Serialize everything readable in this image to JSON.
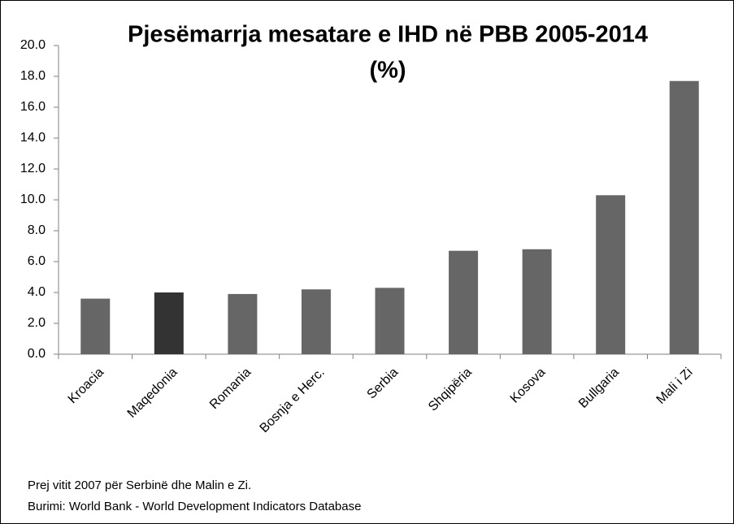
{
  "chart_data": {
    "type": "bar",
    "title": "Pjesëmarrja mesatare e IHD në PBB 2005-2014",
    "subtitle": "(%)",
    "categories": [
      "Kroacia",
      "Maqedonia",
      "Romania",
      "Bosnja e Herc.",
      "Serbia",
      "Shqipëria",
      "Kosova",
      "Bullgaria",
      "Mali i Zi"
    ],
    "values": [
      3.6,
      4.0,
      3.9,
      4.2,
      4.3,
      6.7,
      6.8,
      10.3,
      17.7
    ],
    "colors": [
      "#666666",
      "#333333",
      "#666666",
      "#666666",
      "#666666",
      "#666666",
      "#666666",
      "#666666",
      "#666666"
    ],
    "ylim": [
      0,
      20
    ],
    "yticks": [
      {
        "value": 0,
        "label": "0.0"
      },
      {
        "value": 2,
        "label": "2.0"
      },
      {
        "value": 4,
        "label": "4.0"
      },
      {
        "value": 6,
        "label": "6.0"
      },
      {
        "value": 8,
        "label": "8.0"
      },
      {
        "value": 10,
        "label": "10.0"
      },
      {
        "value": 12,
        "label": "12.0"
      },
      {
        "value": 14,
        "label": "14.0"
      },
      {
        "value": 16,
        "label": "16.0"
      },
      {
        "value": 18,
        "label": "18.0"
      },
      {
        "value": 20,
        "label": "20.0"
      }
    ],
    "grid": false,
    "notes": [
      "Prej vitit 2007 për Serbinë dhe Malin e Zi.",
      "Burimi: World Bank - World Development Indicators Database"
    ]
  }
}
